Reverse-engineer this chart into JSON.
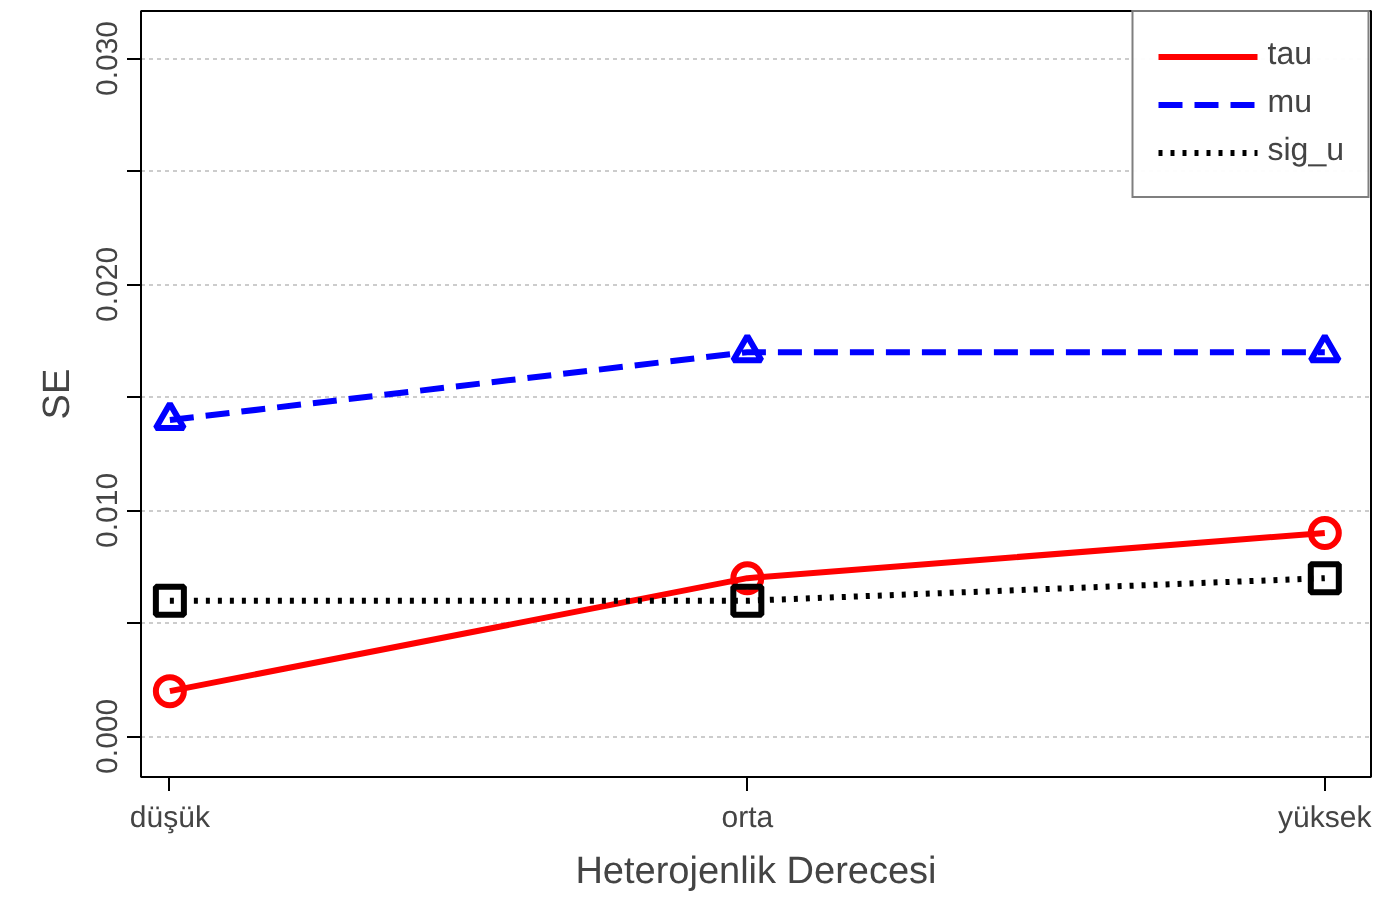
{
  "chart_data": {
    "type": "line",
    "xlabel": "Heterojenlik Derecesi",
    "ylabel": "SE",
    "categories": [
      "düşük",
      "orta",
      "yüksek"
    ],
    "series": [
      {
        "name": "tau",
        "color": "#ff0000",
        "values": [
          0.002,
          0.007,
          0.009
        ],
        "marker": "circle",
        "line_style": "solid"
      },
      {
        "name": "mu",
        "color": "#0000ff",
        "values": [
          0.014,
          0.017,
          0.017
        ],
        "marker": "triangle",
        "line_style": "dashed"
      },
      {
        "name": "sig_u",
        "color": "#000000",
        "values": [
          0.006,
          0.006,
          0.007
        ],
        "marker": "square",
        "line_style": "dotted"
      }
    ],
    "ylim": [
      -0.0018,
      0.0321
    ],
    "yticks": [
      {
        "value": 0,
        "label": "0.000"
      },
      {
        "value": 0.005,
        "label": null
      },
      {
        "value": 0.01,
        "label": "0.010"
      },
      {
        "value": 0.015,
        "label": null
      },
      {
        "value": 0.02,
        "label": "0.020"
      },
      {
        "value": 0.025,
        "label": null
      },
      {
        "value": 0.03,
        "label": "0.030"
      }
    ],
    "grid": "y",
    "legend": "top right"
  }
}
